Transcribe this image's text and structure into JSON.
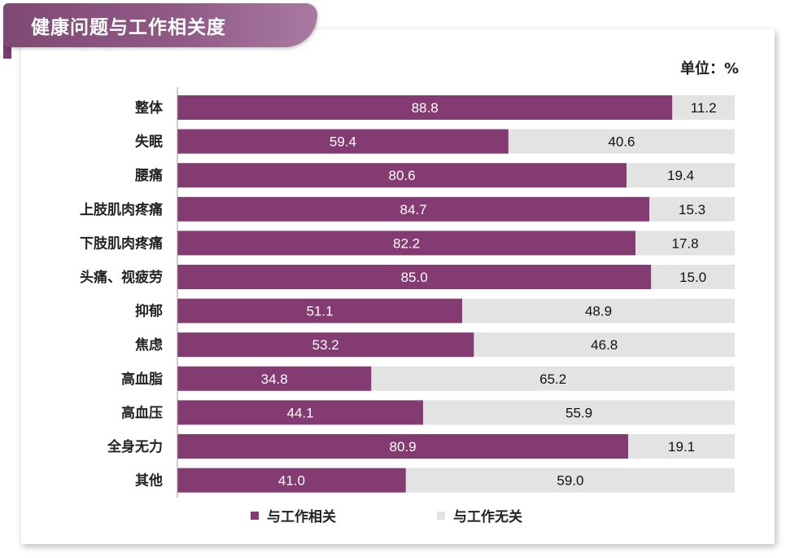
{
  "title": "健康问题与工作相关度",
  "unit_label": "单位：%",
  "colors": {
    "related": "#833b72",
    "unrelated": "#e3e3e3",
    "axis": "#999999"
  },
  "legend": [
    {
      "label": "与工作相关",
      "color": "#833b72"
    },
    {
      "label": "与工作无关",
      "color": "#e3e3e3"
    }
  ],
  "chart_data": {
    "type": "bar",
    "orientation": "horizontal",
    "stacked": true,
    "xlim": [
      0,
      100
    ],
    "categories": [
      "整体",
      "失眠",
      "腰痛",
      "上肢肌肉疼痛",
      "下肢肌肉疼痛",
      "头痛、视疲劳",
      "抑郁",
      "焦虑",
      "高血脂",
      "高血压",
      "全身无力",
      "其他"
    ],
    "series": [
      {
        "name": "与工作相关",
        "values": [
          88.8,
          59.4,
          80.6,
          84.7,
          82.2,
          85.0,
          51.1,
          53.2,
          34.8,
          44.1,
          80.9,
          41.0
        ]
      },
      {
        "name": "与工作无关",
        "values": [
          11.2,
          40.6,
          19.4,
          15.3,
          17.8,
          15.0,
          48.9,
          46.8,
          65.2,
          55.9,
          19.1,
          59.0
        ]
      }
    ]
  }
}
